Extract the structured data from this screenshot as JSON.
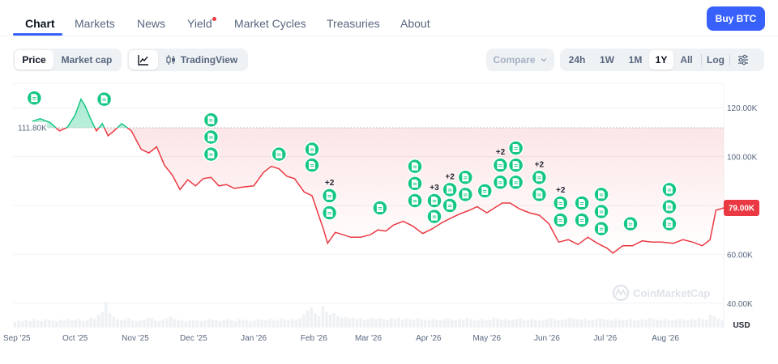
{
  "tabs": [
    {
      "label": "Chart",
      "active": true
    },
    {
      "label": "Markets"
    },
    {
      "label": "News"
    },
    {
      "label": "Yield",
      "badge": true
    },
    {
      "label": "Market Cycles"
    },
    {
      "label": "Treasuries"
    },
    {
      "label": "About"
    }
  ],
  "buy_label": "Buy BTC",
  "toolbar": {
    "metric_tabs": [
      "Price",
      "Market cap"
    ],
    "metric_selected": "Price",
    "chart_type_icon": "line-chart-icon",
    "tradingview_label": "TradingView",
    "compare_label": "Compare",
    "ranges": [
      "24h",
      "1W",
      "1M",
      "1Y",
      "All"
    ],
    "range_selected": "1Y",
    "log_label": "Log",
    "settings_icon": "sliders-icon"
  },
  "chart_data": {
    "type": "line",
    "title": "",
    "xlabel": "",
    "ylabel": "",
    "currency": "USD",
    "watermark": "CoinMarketCap",
    "reference_label": "111.80K",
    "reference_value": 111800,
    "current_label": "79.00K",
    "current_value": 79000,
    "ylim": [
      30000,
      130000
    ],
    "y_ticks": [
      "120.00K",
      "100.00K",
      "80.00K",
      "60.00K",
      "40.00K"
    ],
    "y_tick_values": [
      120000,
      100000,
      80000,
      60000,
      40000
    ],
    "x_ticks": [
      "Sep '25",
      "Oct '25",
      "Nov '25",
      "Dec '25",
      "Jan '26",
      "Feb '26",
      "Mar '26",
      "Apr '26",
      "May '26",
      "Jun '26",
      "Jul '26",
      "Aug '26"
    ],
    "x_tick_dates": [
      "2025-09-01",
      "2025-10-01",
      "2025-11-01",
      "2025-12-01",
      "2026-01-01",
      "2026-02-01",
      "2026-03-01",
      "2026-04-01",
      "2026-05-01",
      "2026-06-01",
      "2026-07-01",
      "2026-08-01"
    ],
    "x_range": [
      "2025-08-30",
      "2026-08-31"
    ],
    "up_color": "#16c784",
    "down_color": "#ea3943",
    "series": [
      {
        "x": [
          "2025-09-09",
          "2025-09-13",
          "2025-09-18",
          "2025-09-23",
          "2025-09-27",
          "2025-10-01",
          "2025-10-04",
          "2025-10-06",
          "2025-10-09",
          "2025-10-12",
          "2025-10-15",
          "2025-10-18",
          "2025-10-21",
          "2025-10-25",
          "2025-10-30",
          "2025-11-04",
          "2025-11-08",
          "2025-11-12",
          "2025-11-16",
          "2025-11-20",
          "2025-11-24",
          "2025-11-28",
          "2025-12-02",
          "2025-12-06",
          "2025-12-10",
          "2025-12-14",
          "2025-12-18",
          "2025-12-22",
          "2025-12-26",
          "2026-01-01",
          "2026-01-06",
          "2026-01-10",
          "2026-01-14",
          "2026-01-18",
          "2026-01-22",
          "2026-01-27",
          "2026-01-31",
          "2026-02-03",
          "2026-02-06",
          "2026-02-08",
          "2026-02-12",
          "2026-02-16",
          "2026-02-20",
          "2026-02-25",
          "2026-03-02",
          "2026-03-06",
          "2026-03-10",
          "2026-03-14",
          "2026-03-19",
          "2026-03-24",
          "2026-03-29",
          "2026-04-03",
          "2026-04-08",
          "2026-04-13",
          "2026-04-17",
          "2026-04-22",
          "2026-04-26",
          "2026-05-01",
          "2026-05-05",
          "2026-05-09",
          "2026-05-13",
          "2026-05-18",
          "2026-05-23",
          "2026-05-28",
          "2026-06-02",
          "2026-06-07",
          "2026-06-12",
          "2026-06-17",
          "2026-06-22",
          "2026-06-27",
          "2026-07-02",
          "2026-07-05",
          "2026-07-10",
          "2026-07-15",
          "2026-07-20",
          "2026-07-25",
          "2026-07-30",
          "2026-08-05",
          "2026-08-10",
          "2026-08-15",
          "2026-08-20",
          "2026-08-24",
          "2026-08-27",
          "2026-08-31"
        ],
        "values": [
          114500,
          115500,
          114000,
          110500,
          112000,
          117000,
          123500,
          121000,
          115500,
          110500,
          113500,
          108500,
          110500,
          113500,
          110500,
          103000,
          101500,
          104000,
          96500,
          92500,
          86500,
          90500,
          88000,
          91000,
          91500,
          88000,
          88500,
          87000,
          87500,
          88000,
          93500,
          96000,
          95000,
          92000,
          91000,
          85500,
          84000,
          77000,
          70000,
          64500,
          69000,
          68000,
          67000,
          67000,
          68000,
          70000,
          69500,
          72000,
          73500,
          71500,
          68500,
          70500,
          73000,
          75000,
          76500,
          78000,
          79500,
          77000,
          79000,
          81000,
          81000,
          78500,
          77000,
          76000,
          72500,
          65000,
          66000,
          64000,
          67000,
          64500,
          62500,
          60500,
          63500,
          63500,
          65500,
          65000,
          65000,
          64500,
          66000,
          65000,
          63500,
          66000,
          78000,
          79000
        ]
      }
    ],
    "news_markers": [
      {
        "date": "2025-09-10",
        "value": 124000
      },
      {
        "date": "2025-10-16",
        "value": 123500
      },
      {
        "date": "2025-12-10",
        "value": 115000
      },
      {
        "date": "2025-12-10",
        "value": 108000
      },
      {
        "date": "2025-12-10",
        "value": 101000
      },
      {
        "date": "2026-01-14",
        "value": 101000
      },
      {
        "date": "2026-01-31",
        "value": 103000
      },
      {
        "date": "2026-01-31",
        "value": 96500
      },
      {
        "date": "2026-02-09",
        "value": 84000,
        "extra": "+2"
      },
      {
        "date": "2026-02-09",
        "value": 77000
      },
      {
        "date": "2026-03-07",
        "value": 79000
      },
      {
        "date": "2026-03-25",
        "value": 96000
      },
      {
        "date": "2026-03-25",
        "value": 89000
      },
      {
        "date": "2026-03-25",
        "value": 82000
      },
      {
        "date": "2026-04-04",
        "value": 82000,
        "extra": "+3"
      },
      {
        "date": "2026-04-04",
        "value": 75500
      },
      {
        "date": "2026-04-12",
        "value": 86500,
        "extra": "+2"
      },
      {
        "date": "2026-04-12",
        "value": 80000
      },
      {
        "date": "2026-04-20",
        "value": 91500
      },
      {
        "date": "2026-04-20",
        "value": 84500
      },
      {
        "date": "2026-04-30",
        "value": 86000
      },
      {
        "date": "2026-05-08",
        "value": 96500,
        "extra": "+2"
      },
      {
        "date": "2026-05-08",
        "value": 89500
      },
      {
        "date": "2026-05-16",
        "value": 103500
      },
      {
        "date": "2026-05-16",
        "value": 96500
      },
      {
        "date": "2026-05-16",
        "value": 89500
      },
      {
        "date": "2026-05-28",
        "value": 91500,
        "extra": "+2"
      },
      {
        "date": "2026-05-28",
        "value": 84500
      },
      {
        "date": "2026-06-08",
        "value": 81000,
        "extra": "+2"
      },
      {
        "date": "2026-06-08",
        "value": 74000
      },
      {
        "date": "2026-06-19",
        "value": 81000
      },
      {
        "date": "2026-06-19",
        "value": 74000
      },
      {
        "date": "2026-06-29",
        "value": 84500
      },
      {
        "date": "2026-06-29",
        "value": 77500
      },
      {
        "date": "2026-06-29",
        "value": 70500
      },
      {
        "date": "2026-07-14",
        "value": 72500
      },
      {
        "date": "2026-08-03",
        "value": 86500
      },
      {
        "date": "2026-08-03",
        "value": 79500
      },
      {
        "date": "2026-08-03",
        "value": 72500
      }
    ],
    "volume": [
      8,
      10,
      9,
      11,
      9,
      12,
      10,
      9,
      12,
      11,
      10,
      9,
      11,
      10,
      12,
      10,
      11,
      12,
      9,
      10,
      14,
      12,
      18,
      22,
      36,
      20,
      15,
      12,
      10,
      11,
      13,
      10,
      9,
      10,
      11,
      14,
      13,
      10,
      9,
      11,
      13,
      15,
      12,
      11,
      10,
      9,
      10,
      11,
      10,
      9,
      10,
      12,
      11,
      10,
      9,
      11,
      12,
      10,
      9,
      12,
      10,
      11,
      9,
      10,
      12,
      11,
      10,
      12,
      11,
      10,
      13,
      11,
      10,
      12,
      11,
      13,
      18,
      24,
      28,
      20,
      16,
      30,
      22,
      18,
      20,
      16,
      14,
      15,
      13,
      14,
      12,
      13,
      11,
      12,
      14,
      12,
      13,
      12,
      11,
      13,
      12,
      14,
      11,
      13,
      12,
      11,
      13,
      12,
      11,
      10,
      12,
      11,
      10,
      12,
      13,
      11,
      10,
      12,
      11,
      13,
      12,
      10,
      11,
      12,
      10,
      11,
      14,
      13,
      11,
      12,
      10,
      11,
      12,
      13,
      11,
      10,
      12,
      11,
      10,
      11,
      12,
      13,
      12,
      10,
      11,
      12,
      14,
      13,
      12,
      11,
      12,
      10,
      11,
      12,
      13,
      12,
      11,
      10,
      12,
      11,
      10,
      11,
      12,
      11,
      10,
      12,
      11,
      13,
      12,
      11,
      10,
      12,
      11,
      10,
      11,
      12,
      11,
      10,
      12,
      11,
      13,
      12,
      11,
      18,
      16,
      12,
      11
    ]
  }
}
